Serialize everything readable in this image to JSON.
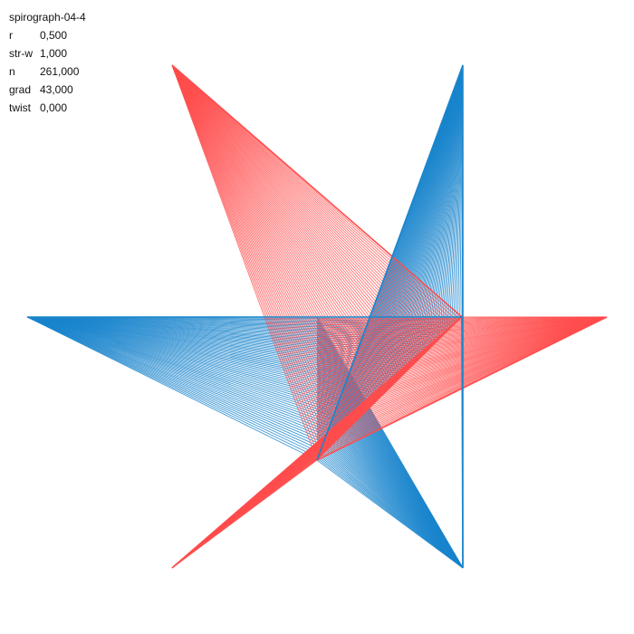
{
  "title": "spirograph-04-4",
  "params": [
    {
      "key": "r",
      "value": "0,500"
    },
    {
      "key": "str-w",
      "value": "1,000"
    },
    {
      "key": "n",
      "value": "261,000"
    },
    {
      "key": "grad",
      "value": "43,000"
    },
    {
      "key": "twist",
      "value": "0,000"
    }
  ],
  "colors": {
    "background": "#ffffff",
    "red": "#ff4d4d",
    "blue": "#1a85cc",
    "text": "#111111"
  }
}
